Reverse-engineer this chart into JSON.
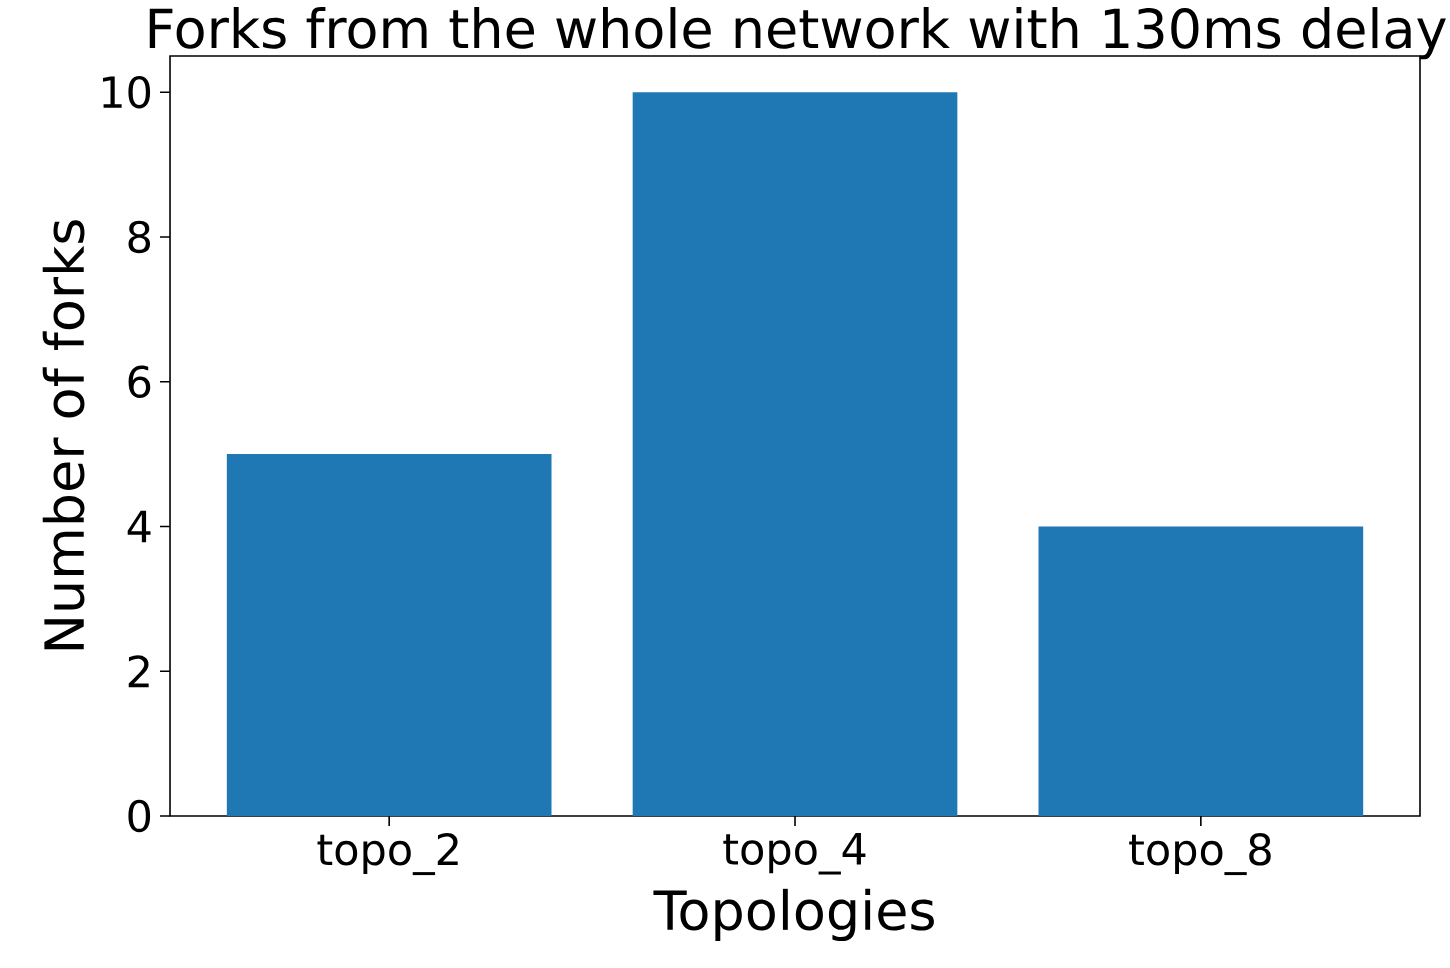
{
  "chart_data": {
    "type": "bar",
    "title": "Forks from the whole network with 130ms delay",
    "xlabel": "Topologies",
    "ylabel": "Number of forks",
    "categories": [
      "topo_2",
      "topo_4",
      "topo_8"
    ],
    "values": [
      5,
      10,
      4
    ],
    "color": "#1f77b4",
    "ylim": [
      0,
      10.5
    ],
    "yticks": [
      0,
      2,
      4,
      6,
      8,
      10
    ]
  }
}
